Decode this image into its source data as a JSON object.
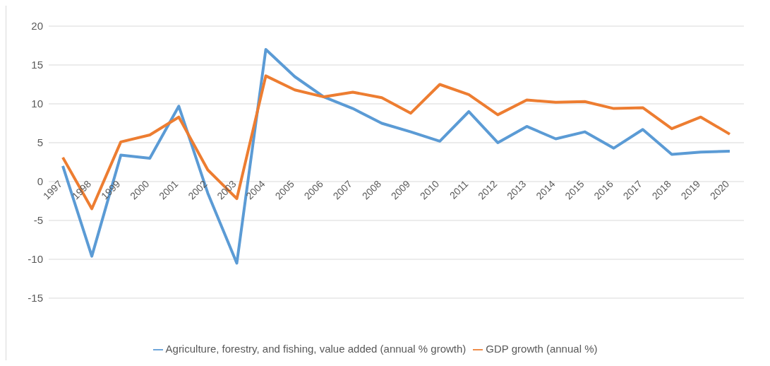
{
  "chart_data": {
    "type": "line",
    "categories": [
      "1997",
      "1998",
      "1999",
      "2000",
      "2001",
      "2002",
      "2003",
      "2004",
      "2005",
      "2006",
      "2007",
      "2008",
      "2009",
      "2010",
      "2011",
      "2012",
      "2013",
      "2014",
      "2015",
      "2016",
      "2017",
      "2018",
      "2019",
      "2020"
    ],
    "series": [
      {
        "name": "Agriculture, forestry, and fishing, value added (annual % growth)",
        "color": "#5b9bd5",
        "values": [
          2.0,
          -9.6,
          3.4,
          3.0,
          9.7,
          -1.5,
          -10.5,
          17.0,
          13.5,
          10.9,
          9.4,
          7.5,
          6.4,
          5.2,
          9.0,
          5.0,
          7.1,
          5.5,
          6.4,
          4.3,
          6.7,
          3.5,
          3.8,
          3.9
        ]
      },
      {
        "name": "GDP growth (annual %)",
        "color": "#ed7d31",
        "values": [
          3.1,
          -3.5,
          5.1,
          6.0,
          8.3,
          1.5,
          -2.2,
          13.6,
          11.8,
          10.9,
          11.5,
          10.8,
          8.8,
          12.5,
          11.2,
          8.6,
          10.5,
          10.2,
          10.3,
          9.4,
          9.5,
          6.8,
          8.3,
          6.1
        ]
      }
    ],
    "ylim": [
      -15,
      20
    ],
    "yticks": [
      -15,
      -10,
      -5,
      0,
      5,
      10,
      15,
      20
    ],
    "grid": "y",
    "legend": "bottom",
    "marker": "none",
    "line_style": "solid"
  }
}
